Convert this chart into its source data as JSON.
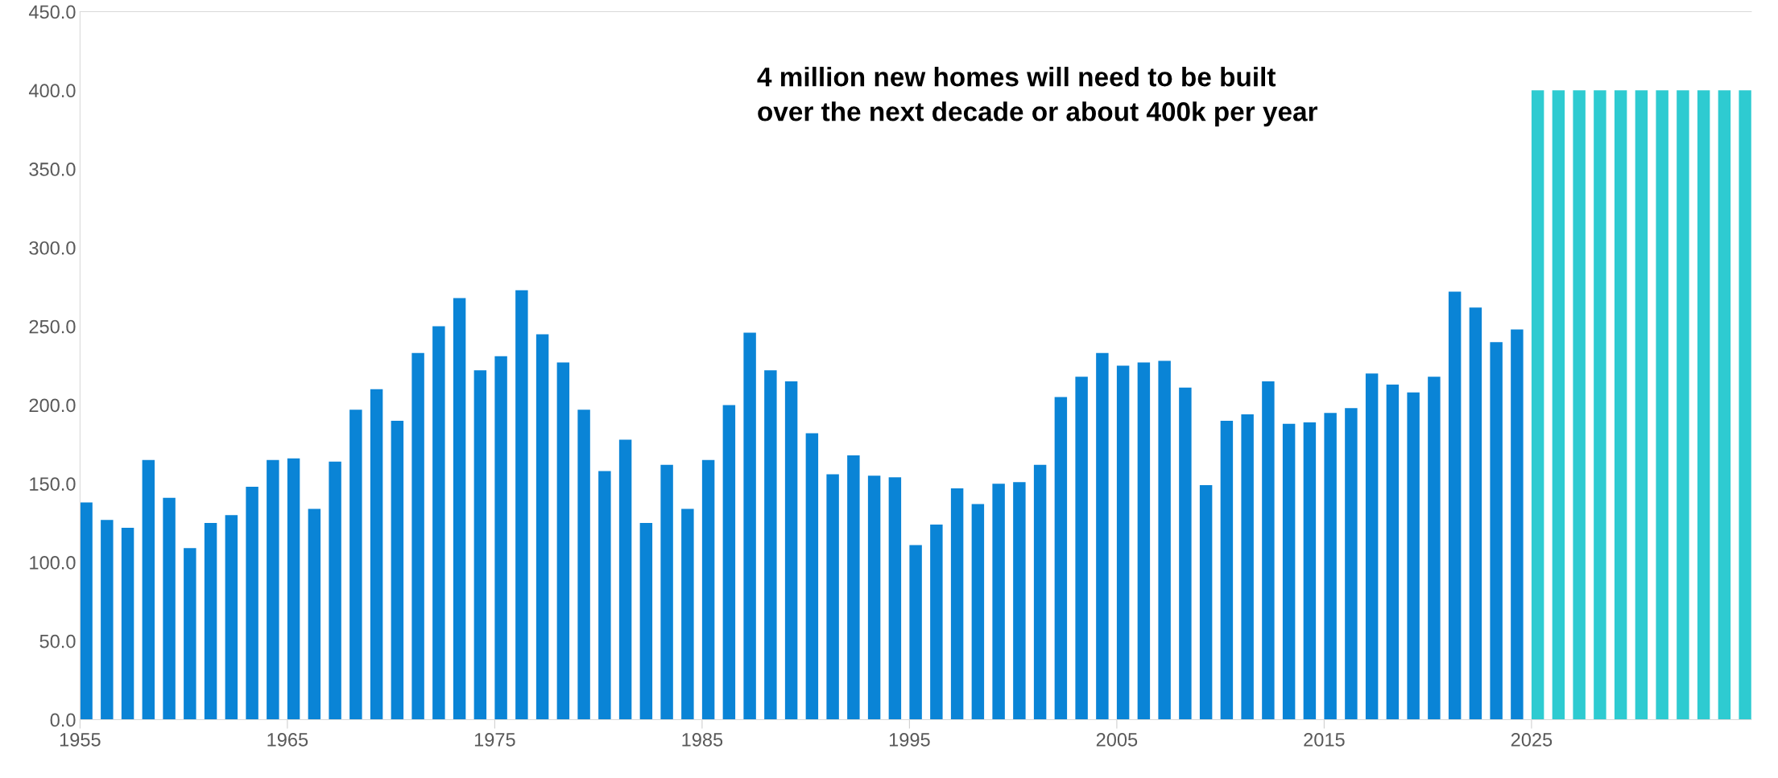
{
  "chart_data": {
    "type": "bar",
    "x": [
      1955,
      1956,
      1957,
      1958,
      1959,
      1960,
      1961,
      1962,
      1963,
      1964,
      1965,
      1966,
      1967,
      1968,
      1969,
      1970,
      1971,
      1972,
      1973,
      1974,
      1975,
      1976,
      1977,
      1978,
      1979,
      1980,
      1981,
      1982,
      1983,
      1984,
      1985,
      1986,
      1987,
      1988,
      1989,
      1990,
      1991,
      1992,
      1993,
      1994,
      1995,
      1996,
      1997,
      1998,
      1999,
      2000,
      2001,
      2002,
      2003,
      2004,
      2005,
      2006,
      2007,
      2008,
      2009,
      2010,
      2011,
      2012,
      2013,
      2014,
      2015,
      2016,
      2017,
      2018,
      2019,
      2020,
      2021,
      2022,
      2023,
      2024
    ],
    "series": [
      {
        "color": "#0a84d6",
        "values": [
          138,
          127,
          122,
          165,
          141,
          109,
          125,
          130,
          148,
          165,
          166,
          134,
          164,
          197,
          210,
          190,
          233,
          250,
          268,
          222,
          231,
          273,
          245,
          227,
          197,
          158,
          178,
          125,
          162,
          134,
          165,
          200,
          246,
          222,
          215,
          182,
          156,
          168,
          155,
          154,
          111,
          124,
          147,
          137,
          150,
          151,
          162,
          205,
          218,
          233,
          225,
          227,
          228,
          211,
          149,
          190,
          194,
          215,
          188,
          189,
          195,
          198,
          220,
          213,
          208,
          218,
          272,
          262,
          240,
          248
        ]
      },
      {
        "color": "#2ecbd1",
        "x": [
          2025,
          2026,
          2027,
          2028,
          2029,
          2030,
          2031,
          2032,
          2033,
          2034,
          2035
        ],
        "values": [
          400,
          400,
          400,
          400,
          400,
          400,
          400,
          400,
          400,
          400,
          400
        ]
      }
    ],
    "xlim": [
      1955,
      2035.6
    ],
    "xticks": [
      1955,
      1965,
      1975,
      1985,
      1995,
      2005,
      2015,
      2025
    ],
    "ylim": [
      0,
      450
    ],
    "yticks": [
      {
        "value": 0,
        "label": "0.0"
      },
      {
        "value": 50,
        "label": "50.0"
      },
      {
        "value": 100,
        "label": "100.0"
      },
      {
        "value": 150,
        "label": "150.0"
      },
      {
        "value": 200,
        "label": "200.0"
      },
      {
        "value": 250,
        "label": "250.0"
      },
      {
        "value": 300,
        "label": "300.0"
      },
      {
        "value": 350,
        "label": "350.0"
      },
      {
        "value": 400,
        "label": "400.0"
      },
      {
        "value": 450,
        "label": "450.0"
      }
    ],
    "annotations": [
      "4 million new homes will need to be built\nover the next decade or about 400k per year"
    ]
  }
}
